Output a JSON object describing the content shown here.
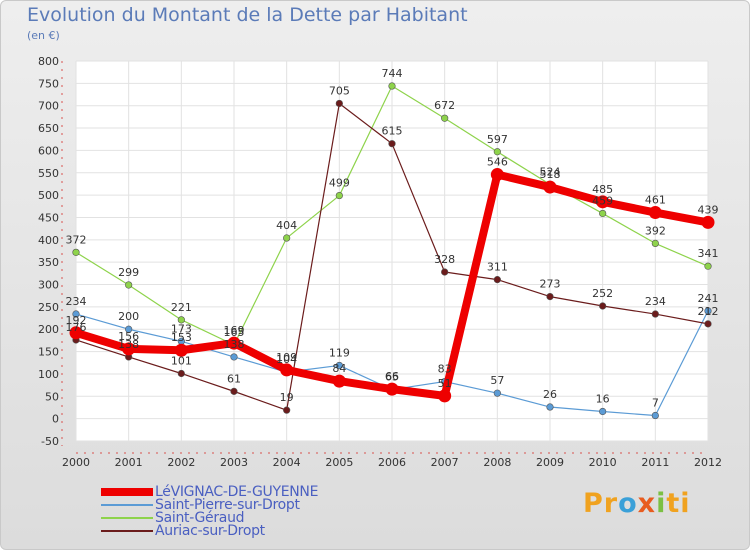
{
  "title": "Evolution du Montant de la Dette par Habitant",
  "subtitle": "(en €)",
  "logo": {
    "parts": [
      "Pr",
      "o",
      "x",
      "i",
      "ti"
    ]
  },
  "chart_data": {
    "type": "line",
    "x": [
      "2000",
      "2001",
      "2002",
      "2003",
      "2004",
      "2005",
      "2006",
      "2007",
      "2008",
      "2009",
      "2010",
      "2011",
      "2012"
    ],
    "ylim": [
      -50,
      800
    ],
    "yticks": [
      -50,
      0,
      50,
      100,
      150,
      200,
      250,
      300,
      350,
      400,
      450,
      500,
      550,
      600,
      650,
      700,
      750,
      800
    ],
    "grid": true,
    "legend_position": "bottom-left",
    "series": [
      {
        "name": "Saint-Pierre-sur-Dropt",
        "color": "#5b9bd5",
        "values": [
          234,
          200,
          173,
          138,
          104,
          119,
          65,
          83,
          57,
          26,
          16,
          7,
          241
        ]
      },
      {
        "name": "Saint-Géraud",
        "color": "#8ed34b",
        "values": [
          372,
          299,
          221,
          165,
          404,
          499,
          744,
          672,
          597,
          524,
          459,
          392,
          341
        ]
      },
      {
        "name": "Auriac-sur-Dropt",
        "color": "#6b1c1c",
        "values": [
          176,
          138,
          101,
          61,
          19,
          705,
          615,
          328,
          311,
          273,
          252,
          234,
          212
        ]
      },
      {
        "name": "LéVIGNAC-DE-GUYENNE",
        "color": "#ee0000",
        "values": [
          192,
          156,
          153,
          169,
          109,
          84,
          66,
          51,
          546,
          518,
          485,
          461,
          439
        ]
      }
    ],
    "legend_order": [
      3,
      0,
      1,
      2
    ]
  }
}
